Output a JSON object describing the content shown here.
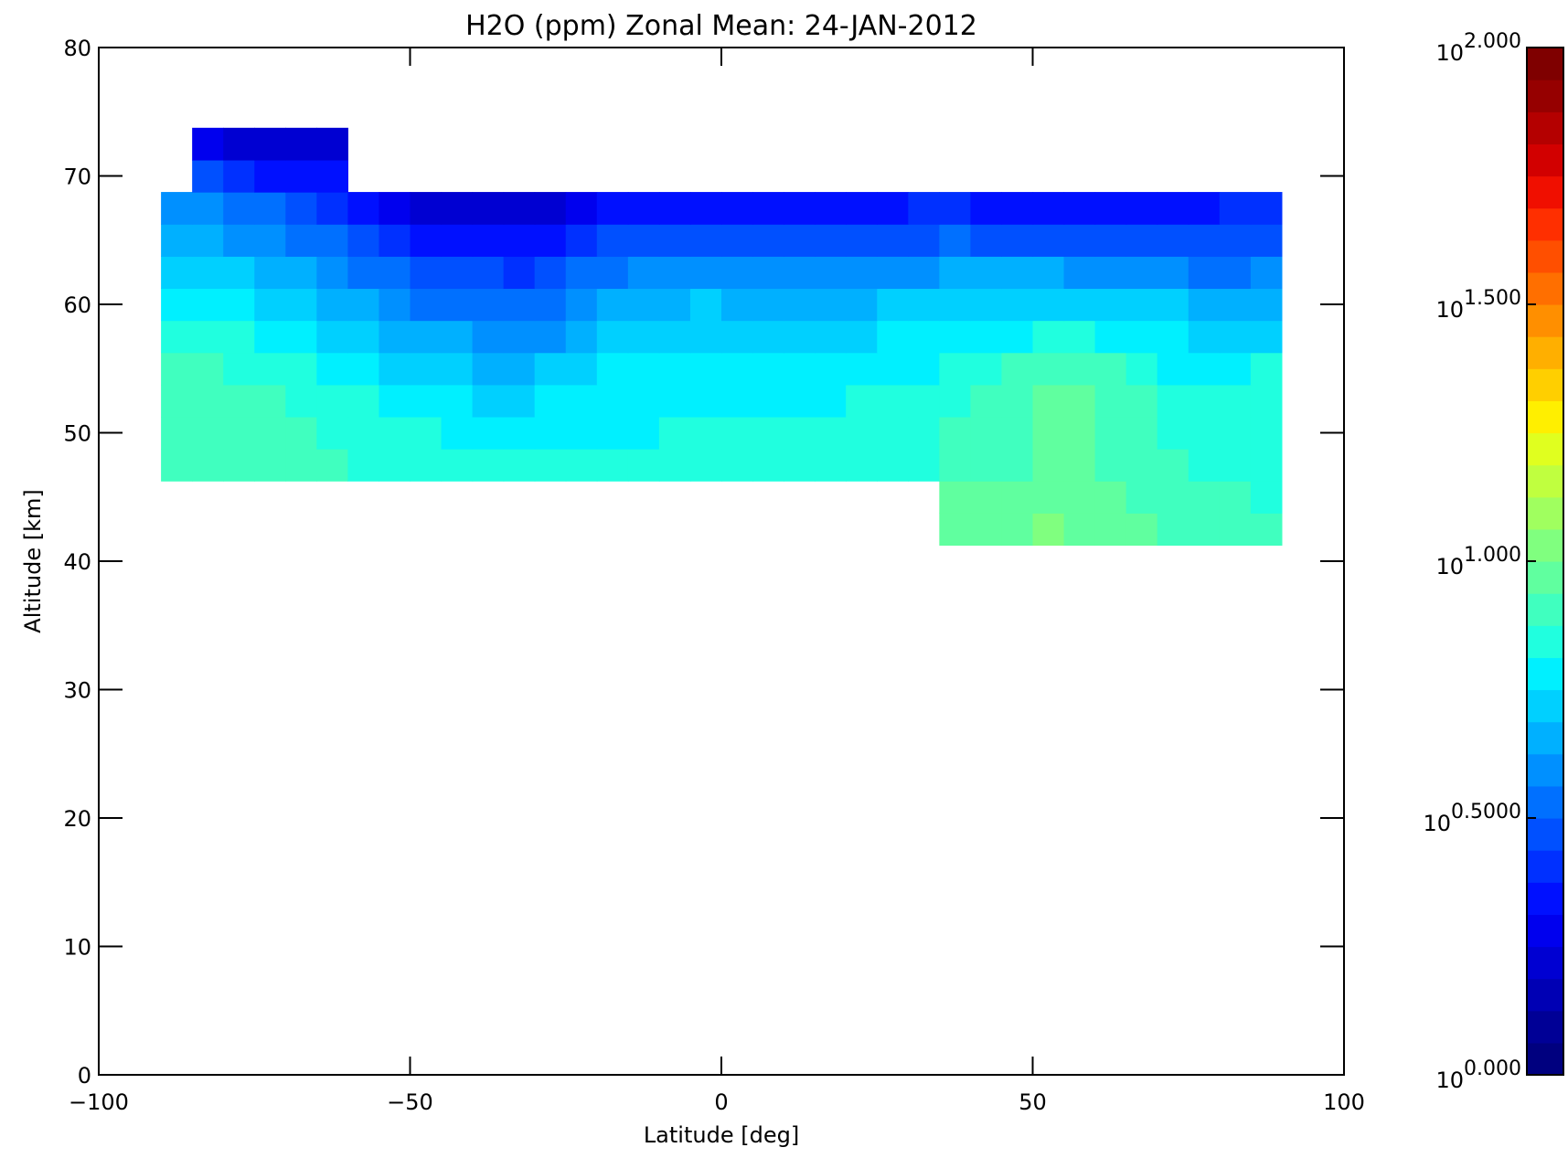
{
  "chart_data": {
    "type": "heatmap",
    "title": "H2O (ppm) Zonal Mean: 24-JAN-2012",
    "xlabel": "Latitude [deg]",
    "ylabel": "Altitude [km]",
    "xlim": [
      -100,
      100
    ],
    "ylim": [
      0,
      80
    ],
    "x_ticks": [
      -100,
      -50,
      0,
      50,
      100
    ],
    "x_tick_labels": [
      "−100",
      "−50",
      "0",
      "50",
      "100"
    ],
    "y_ticks": [
      0,
      10,
      20,
      30,
      40,
      50,
      60,
      70,
      80
    ],
    "y_tick_labels": [
      "0",
      "10",
      "20",
      "30",
      "40",
      "50",
      "60",
      "70",
      "80"
    ],
    "colorbar": {
      "scale": "log",
      "range_log10": [
        0.0,
        2.0
      ],
      "tick_values_log10": [
        0.0,
        0.5,
        1.0,
        1.5,
        2.0
      ],
      "tick_base": "10",
      "tick_exponents": [
        "0.000",
        "0.5000",
        "1.000",
        "1.500",
        "2.000"
      ],
      "colors": [
        "#00007f",
        "#000096",
        "#0000b4",
        "#0000d2",
        "#0000ee",
        "#0010ff",
        "#0030ff",
        "#0050ff",
        "#0070ff",
        "#0090ff",
        "#00b0ff",
        "#00d0ff",
        "#00f0ff",
        "#20ffdf",
        "#40ffbf",
        "#60ff9f",
        "#80ff7f",
        "#a0ff5f",
        "#c0ff3f",
        "#e0ff1f",
        "#ffef00",
        "#ffcf00",
        "#ffaf00",
        "#ff8f00",
        "#ff6f00",
        "#ff4f00",
        "#ff2f00",
        "#f00f00",
        "#d20000",
        "#b40000",
        "#960000",
        "#7f0000"
      ]
    },
    "coverage": {
      "lat_range": [
        -87.5,
        87.5
      ],
      "alt_range": [
        47.5,
        67.5
      ],
      "high_lat_extent": {
        "lat": [
          -82.5,
          -62.5
        ],
        "alt_top": 72.5
      },
      "low_alt_extent": {
        "lat": [
          37.5,
          87.5
        ],
        "alt_bottom": 42.5
      }
    },
    "lat": [
      -87.5,
      -82.5,
      -77.5,
      -72.5,
      -67.5,
      -62.5,
      -57.5,
      -52.5,
      -47.5,
      -42.5,
      -37.5,
      -32.5,
      -27.5,
      -22.5,
      -17.5,
      -12.5,
      -7.5,
      -2.5,
      2.5,
      7.5,
      12.5,
      17.5,
      22.5,
      27.5,
      32.5,
      37.5,
      42.5,
      47.5,
      52.5,
      57.5,
      62.5,
      67.5,
      72.5,
      77.5,
      82.5,
      87.5
    ],
    "alt": [
      42.5,
      45,
      47.5,
      50,
      52.5,
      55,
      57.5,
      60,
      62.5,
      65,
      67.5,
      70,
      72.5
    ],
    "values_log10": [
      [
        null,
        null,
        null,
        null,
        null,
        null,
        null,
        null,
        null,
        null,
        null,
        null,
        null,
        null,
        null,
        null,
        null,
        null,
        null,
        null,
        null,
        null,
        null,
        null,
        null,
        0.95,
        0.97,
        0.99,
        1.0,
        0.99,
        0.97,
        0.95,
        0.93,
        0.91,
        0.89,
        0.88
      ],
      [
        null,
        null,
        null,
        null,
        null,
        null,
        null,
        null,
        null,
        null,
        null,
        null,
        null,
        null,
        null,
        null,
        null,
        null,
        null,
        null,
        null,
        null,
        null,
        null,
        null,
        0.94,
        0.96,
        0.98,
        0.97,
        0.96,
        0.95,
        0.93,
        0.91,
        0.89,
        0.88,
        0.87
      ],
      [
        0.92,
        0.92,
        0.91,
        0.9,
        0.89,
        0.88,
        0.87,
        0.86,
        0.85,
        0.84,
        0.83,
        0.82,
        0.82,
        0.82,
        0.83,
        0.83,
        0.83,
        0.83,
        0.83,
        0.83,
        0.83,
        0.83,
        0.84,
        0.85,
        0.86,
        0.88,
        0.9,
        0.92,
        0.94,
        0.95,
        0.93,
        0.91,
        0.89,
        0.87,
        0.87,
        0.87
      ],
      [
        0.92,
        0.91,
        0.9,
        0.89,
        0.88,
        0.87,
        0.86,
        0.84,
        0.82,
        0.81,
        0.79,
        0.77,
        0.8,
        0.81,
        0.8,
        0.81,
        0.82,
        0.82,
        0.82,
        0.82,
        0.82,
        0.82,
        0.83,
        0.84,
        0.86,
        0.88,
        0.9,
        0.93,
        0.95,
        0.95,
        0.93,
        0.9,
        0.86,
        0.84,
        0.86,
        0.87
      ],
      [
        0.91,
        0.9,
        0.89,
        0.88,
        0.87,
        0.85,
        0.82,
        0.79,
        0.77,
        0.76,
        0.74,
        0.71,
        0.75,
        0.77,
        0.78,
        0.8,
        0.81,
        0.81,
        0.81,
        0.81,
        0.81,
        0.81,
        0.82,
        0.83,
        0.84,
        0.86,
        0.88,
        0.91,
        0.94,
        0.94,
        0.92,
        0.88,
        0.84,
        0.83,
        0.86,
        0.86
      ],
      [
        0.9,
        0.89,
        0.87,
        0.85,
        0.83,
        0.8,
        0.77,
        0.73,
        0.7,
        0.7,
        0.68,
        0.64,
        0.69,
        0.73,
        0.75,
        0.76,
        0.78,
        0.77,
        0.76,
        0.78,
        0.77,
        0.77,
        0.79,
        0.8,
        0.81,
        0.83,
        0.85,
        0.88,
        0.9,
        0.91,
        0.89,
        0.85,
        0.81,
        0.79,
        0.81,
        0.82
      ],
      [
        0.87,
        0.85,
        0.82,
        0.79,
        0.76,
        0.73,
        0.7,
        0.66,
        0.63,
        0.64,
        0.62,
        0.58,
        0.62,
        0.67,
        0.7,
        0.7,
        0.72,
        0.73,
        0.72,
        0.73,
        0.72,
        0.73,
        0.74,
        0.75,
        0.76,
        0.77,
        0.79,
        0.81,
        0.82,
        0.83,
        0.81,
        0.78,
        0.75,
        0.73,
        0.72,
        0.74
      ],
      [
        0.8,
        0.78,
        0.75,
        0.72,
        0.7,
        0.67,
        0.63,
        0.59,
        0.55,
        0.56,
        0.55,
        0.5,
        0.55,
        0.59,
        0.63,
        0.64,
        0.67,
        0.69,
        0.68,
        0.68,
        0.67,
        0.67,
        0.68,
        0.69,
        0.7,
        0.71,
        0.72,
        0.73,
        0.74,
        0.74,
        0.73,
        0.71,
        0.69,
        0.67,
        0.65,
        0.68
      ],
      [
        0.74,
        0.72,
        0.7,
        0.67,
        0.64,
        0.6,
        0.56,
        0.51,
        0.47,
        0.48,
        0.47,
        0.43,
        0.48,
        0.52,
        0.56,
        0.58,
        0.6,
        0.61,
        0.6,
        0.6,
        0.59,
        0.59,
        0.6,
        0.61,
        0.62,
        0.63,
        0.63,
        0.63,
        0.63,
        0.62,
        0.61,
        0.59,
        0.57,
        0.56,
        0.55,
        0.58
      ],
      [
        0.68,
        0.65,
        0.62,
        0.59,
        0.55,
        0.5,
        0.45,
        0.4,
        0.35,
        0.34,
        0.35,
        0.33,
        0.36,
        0.41,
        0.45,
        0.47,
        0.48,
        0.49,
        0.48,
        0.47,
        0.46,
        0.46,
        0.47,
        0.48,
        0.49,
        0.5,
        0.49,
        0.48,
        0.48,
        0.48,
        0.47,
        0.46,
        0.45,
        0.46,
        0.47,
        0.49
      ],
      [
        0.62,
        0.58,
        0.54,
        0.5,
        0.45,
        0.4,
        0.33,
        0.27,
        0.22,
        0.2,
        0.21,
        0.2,
        0.24,
        0.29,
        0.33,
        0.35,
        0.36,
        0.37,
        0.36,
        0.35,
        0.34,
        0.33,
        0.35,
        0.37,
        0.38,
        0.38,
        0.36,
        0.34,
        0.35,
        0.36,
        0.36,
        0.35,
        0.34,
        0.36,
        0.39,
        0.42
      ],
      [
        null,
        0.48,
        0.42,
        0.37,
        0.34,
        0.32,
        null,
        null,
        null,
        null,
        null,
        null,
        null,
        null,
        null,
        null,
        null,
        null,
        null,
        null,
        null,
        null,
        null,
        null,
        null,
        null,
        null,
        null,
        null,
        null,
        null,
        null,
        null,
        null,
        null,
        null
      ],
      [
        null,
        0.26,
        0.22,
        0.2,
        0.2,
        0.22,
        null,
        null,
        null,
        null,
        null,
        null,
        null,
        null,
        null,
        null,
        null,
        null,
        null,
        null,
        null,
        null,
        null,
        null,
        null,
        null,
        null,
        null,
        null,
        null,
        null,
        null,
        null,
        null,
        null,
        null
      ]
    ]
  }
}
